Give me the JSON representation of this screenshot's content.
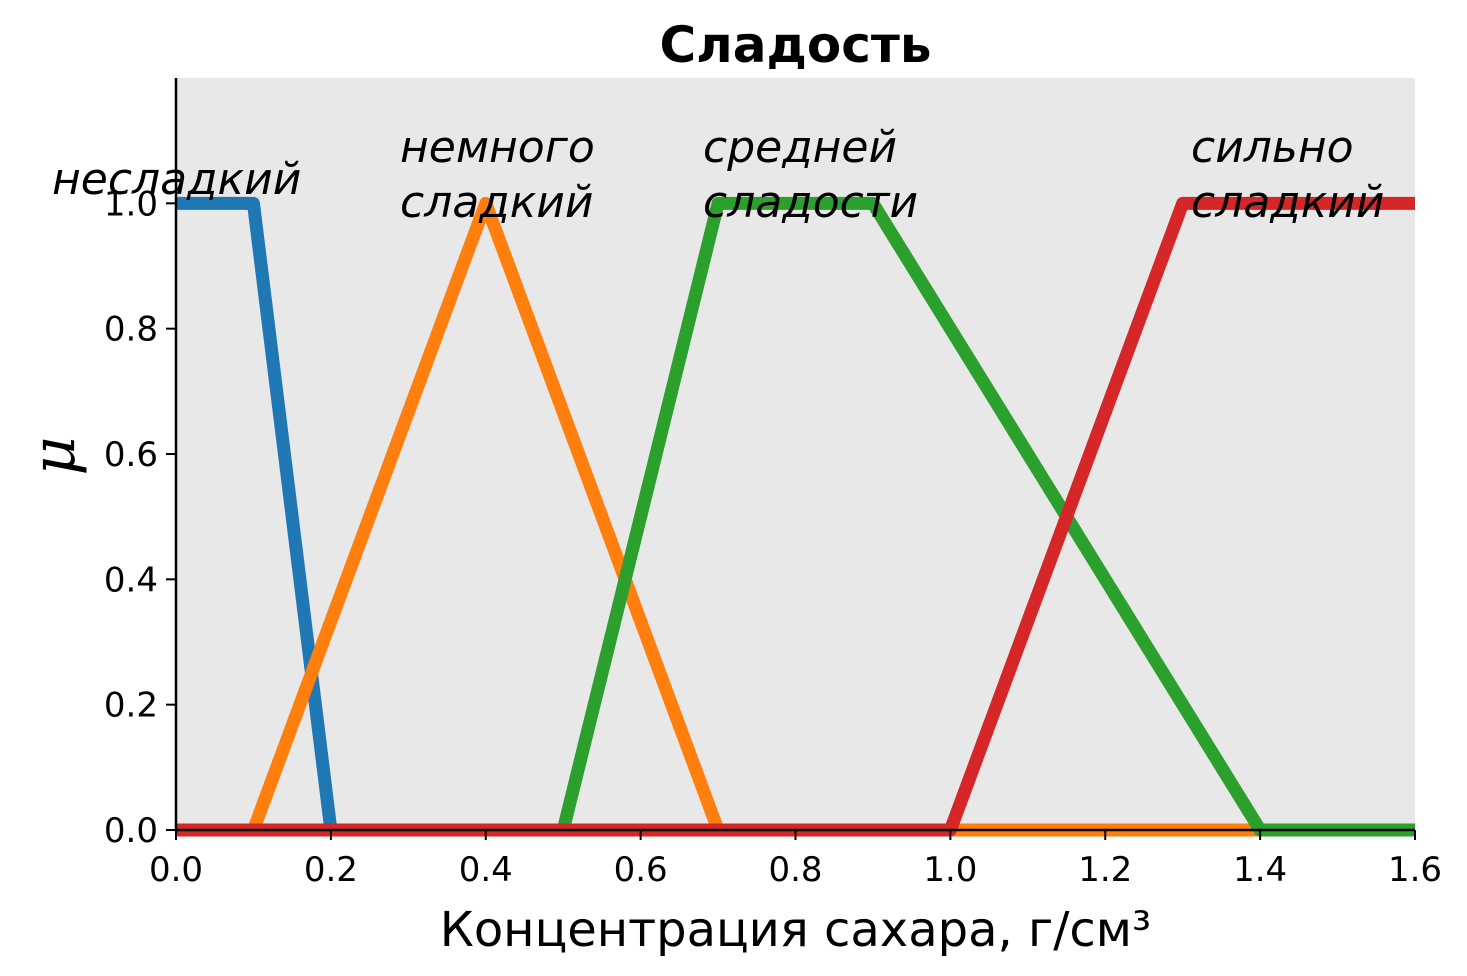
{
  "chart_data": {
    "type": "line",
    "title": "Сладость",
    "xlabel": "Концентрация сахара, г/см³",
    "ylabel": "μ",
    "xlim": [
      0.0,
      1.6
    ],
    "ylim": [
      0.0,
      1.2
    ],
    "x_ticks": [
      "0.0",
      "0.2",
      "0.4",
      "0.6",
      "0.8",
      "1.0",
      "1.2",
      "1.4",
      "1.6"
    ],
    "y_ticks": [
      "0.0",
      "0.2",
      "0.4",
      "0.6",
      "0.8",
      "1.0"
    ],
    "grid": false,
    "background_color": "#e8e8e8",
    "series": [
      {
        "color": "#1f77b4",
        "points": [
          [
            0.0,
            1.0
          ],
          [
            0.1,
            1.0
          ],
          [
            0.2,
            0.0
          ],
          [
            1.6,
            0.0
          ]
        ]
      },
      {
        "color": "#ff7f0e",
        "points": [
          [
            0.0,
            0.0
          ],
          [
            0.1,
            0.0
          ],
          [
            0.4,
            1.0
          ],
          [
            0.7,
            0.0
          ],
          [
            1.6,
            0.0
          ]
        ]
      },
      {
        "color": "#2ca02c",
        "points": [
          [
            0.0,
            0.0
          ],
          [
            0.5,
            0.0
          ],
          [
            0.7,
            1.0
          ],
          [
            0.9,
            1.0
          ],
          [
            1.4,
            0.0
          ],
          [
            1.6,
            0.0
          ]
        ]
      },
      {
        "color": "#d62728",
        "points": [
          [
            0.0,
            0.0
          ],
          [
            1.0,
            0.0
          ],
          [
            1.3,
            1.0
          ],
          [
            1.6,
            1.0
          ]
        ]
      }
    ],
    "annotations": [
      {
        "lines": [
          "несладкий"
        ]
      },
      {
        "lines": [
          "немного",
          "сладкий"
        ]
      },
      {
        "lines": [
          "средней",
          "сладости"
        ]
      },
      {
        "lines": [
          "сильно",
          "сладкий"
        ]
      }
    ]
  }
}
